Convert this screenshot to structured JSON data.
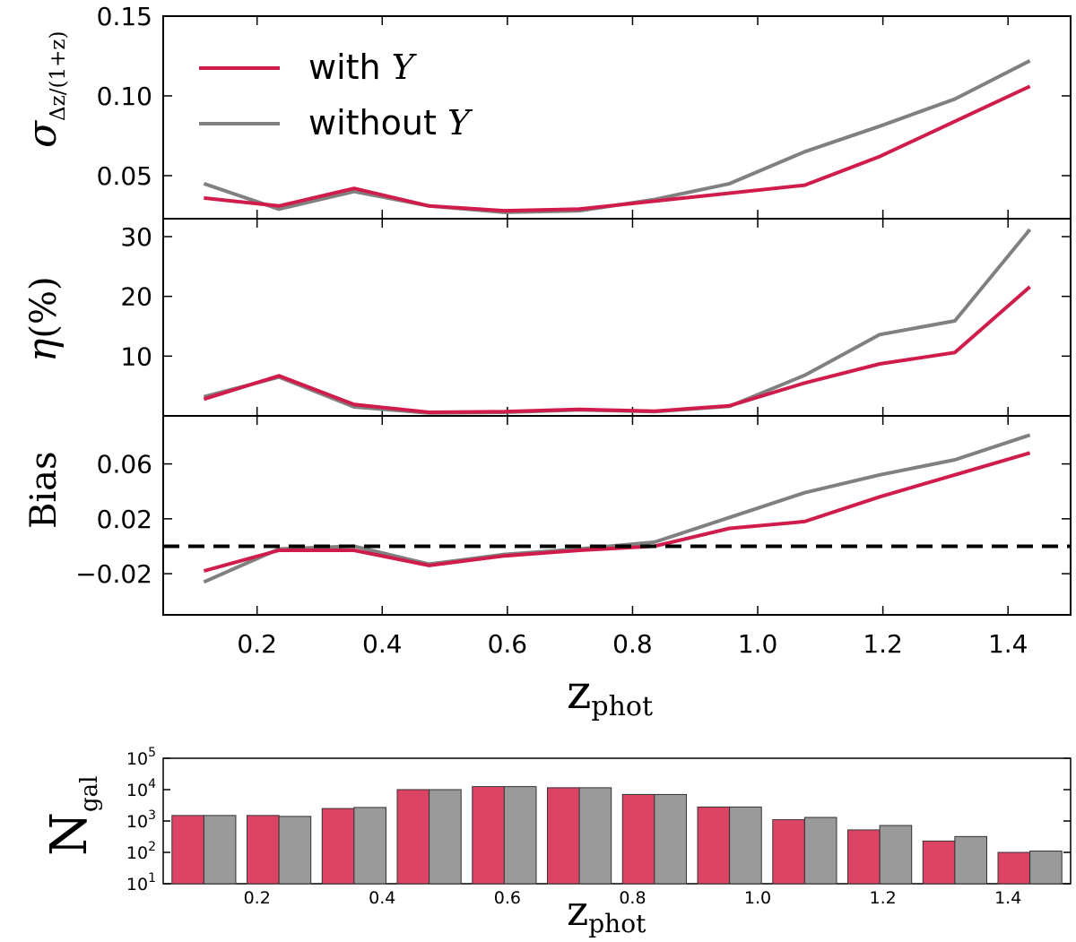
{
  "colors": {
    "with_Y": "#d01c4a",
    "without_Y": "#808080",
    "with_Y_bar": "#dc4466",
    "without_Y_bar": "#9a9a9a"
  },
  "legend": {
    "with_prefix": "with ",
    "with_var": "Y",
    "without_prefix": "without ",
    "without_var": "Y"
  },
  "chart_data": [
    {
      "type": "line",
      "panel": "sigma",
      "ylabel": {
        "base": "σ",
        "sub": "Δz/(1+z)"
      },
      "x": [
        0.115,
        0.235,
        0.355,
        0.475,
        0.595,
        0.715,
        0.835,
        0.955,
        1.075,
        1.195,
        1.315,
        1.435
      ],
      "series": [
        {
          "name": "with Y",
          "values": [
            0.036,
            0.031,
            0.042,
            0.031,
            0.028,
            0.029,
            0.034,
            0.039,
            0.044,
            0.062,
            0.084,
            0.106
          ]
        },
        {
          "name": "without Y",
          "values": [
            0.045,
            0.029,
            0.04,
            0.031,
            0.027,
            0.028,
            0.035,
            0.045,
            0.065,
            0.081,
            0.098,
            0.122
          ]
        }
      ],
      "xlim": [
        0.05,
        1.5
      ],
      "ylim": [
        0.023,
        0.15
      ],
      "yticks": [
        0.05,
        0.1,
        0.15
      ],
      "ytick_labels": [
        "0.05",
        "0.10",
        "0.15"
      ]
    },
    {
      "type": "line",
      "panel": "eta",
      "ylabel": {
        "base": "η",
        "paren": "(%)"
      },
      "x": [
        0.115,
        0.235,
        0.355,
        0.475,
        0.595,
        0.715,
        0.835,
        0.955,
        1.075,
        1.195,
        1.315,
        1.435
      ],
      "series": [
        {
          "name": "with Y",
          "values": [
            2.8,
            6.7,
            1.9,
            0.6,
            0.7,
            1.1,
            0.8,
            1.7,
            5.5,
            8.7,
            10.6,
            21.6
          ]
        },
        {
          "name": "without Y",
          "values": [
            3.2,
            6.5,
            1.5,
            0.5,
            0.6,
            1.0,
            0.7,
            1.6,
            6.8,
            13.6,
            15.9,
            31.2
          ]
        }
      ],
      "xlim": [
        0.05,
        1.5
      ],
      "ylim": [
        0,
        33
      ],
      "yticks": [
        10,
        20,
        30
      ],
      "ytick_labels": [
        "10",
        "20",
        "30"
      ]
    },
    {
      "type": "line",
      "panel": "bias",
      "ylabel": "Bias",
      "reference_line": 0,
      "x": [
        0.115,
        0.235,
        0.355,
        0.475,
        0.595,
        0.715,
        0.835,
        0.955,
        1.075,
        1.195,
        1.315,
        1.435
      ],
      "series": [
        {
          "name": "with Y",
          "values": [
            -0.018,
            -0.003,
            -0.003,
            -0.014,
            -0.007,
            -0.003,
            0.0,
            0.013,
            0.018,
            0.036,
            0.052,
            0.068
          ]
        },
        {
          "name": "without Y",
          "values": [
            -0.026,
            -0.002,
            0.0,
            -0.013,
            -0.006,
            -0.002,
            0.003,
            0.021,
            0.039,
            0.052,
            0.063,
            0.081
          ]
        }
      ],
      "xlim": [
        0.05,
        1.5
      ],
      "ylim": [
        -0.05,
        0.095
      ],
      "yticks": [
        -0.02,
        0.02,
        0.06
      ],
      "ytick_labels": [
        "−0.02",
        "0.02",
        "0.06"
      ],
      "xticks": [
        0.2,
        0.4,
        0.6,
        0.8,
        1.0,
        1.2,
        1.4
      ],
      "xtick_labels": [
        "0.2",
        "0.4",
        "0.6",
        "0.8",
        "1.0",
        "1.2",
        "1.4"
      ],
      "xlabel": {
        "base": "z",
        "sub": "phot"
      }
    },
    {
      "type": "bar",
      "panel": "ngal",
      "yscale": "log",
      "ylabel": {
        "base": "N",
        "sub": "gal"
      },
      "x": [
        0.115,
        0.235,
        0.355,
        0.475,
        0.595,
        0.715,
        0.835,
        0.955,
        1.075,
        1.195,
        1.315,
        1.435
      ],
      "series": [
        {
          "name": "with Y",
          "values": [
            1500,
            1500,
            2500,
            10000,
            12500,
            11500,
            7000,
            2800,
            1100,
            520,
            230,
            100
          ]
        },
        {
          "name": "without Y",
          "values": [
            1500,
            1400,
            2700,
            10000,
            12500,
            11500,
            7000,
            2800,
            1300,
            720,
            320,
            110
          ]
        }
      ],
      "xlim": [
        0.05,
        1.5
      ],
      "ylim_exp": [
        1,
        5
      ],
      "yticks_exp": [
        1,
        2,
        3,
        4,
        5
      ],
      "ytick_base": "10",
      "ytick_exps": [
        "1",
        "2",
        "3",
        "4",
        "5"
      ],
      "xticks": [
        0.2,
        0.4,
        0.6,
        0.8,
        1.0,
        1.2,
        1.4
      ],
      "xtick_labels": [
        "0.2",
        "0.4",
        "0.6",
        "0.8",
        "1.0",
        "1.2",
        "1.4"
      ],
      "xlabel": {
        "base": "z",
        "sub": "phot"
      }
    }
  ]
}
